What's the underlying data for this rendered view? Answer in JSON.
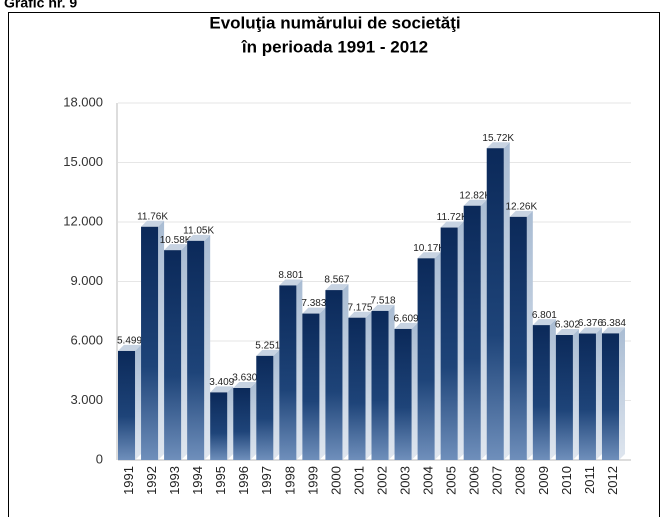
{
  "chart_data": {
    "type": "bar",
    "caption": "Grafic nr. 9",
    "title": "Evoluţia numărului de societăţi",
    "subtitle": "în perioada 1991 - 2012",
    "categories": [
      "1991",
      "1992",
      "1993",
      "1994",
      "1995",
      "1996",
      "1997",
      "1998",
      "1999",
      "2000",
      "2001",
      "2002",
      "2003",
      "2004",
      "2005",
      "2006",
      "2007",
      "2008",
      "2009",
      "2010",
      "2011",
      "2012"
    ],
    "values": [
      5499,
      11760,
      10580,
      11050,
      3409,
      3630,
      5251,
      8801,
      7383,
      8567,
      7175,
      7518,
      6609,
      10170,
      11720,
      12820,
      15720,
      12260,
      6801,
      6302,
      6376,
      6384
    ],
    "value_labels": [
      "5.499",
      "11.76K",
      "10.58K",
      "11.05K",
      "3.409",
      "3.630",
      "5.251",
      "8.801",
      "7.383",
      "8.567",
      "7.175",
      "7.518",
      "6.609",
      "10.17K",
      "11.72K",
      "12.82K",
      "15.72K",
      "12.26K",
      "6.801",
      "6.302",
      "6.376",
      "6.384"
    ],
    "color": "#0d2d62",
    "ylim": [
      0,
      18000
    ],
    "yticks": [
      0,
      {
        "value": 3000,
        "label": "3.000"
      },
      {
        "value": 6000,
        "label": "6.000"
      },
      {
        "value": 9000,
        "label": "9.000"
      },
      {
        "value": 12000,
        "label": "12.000"
      },
      {
        "value": 15000,
        "label": "15.000"
      },
      {
        "value": 18000,
        "label": "18.000"
      }
    ],
    "grid": true
  }
}
